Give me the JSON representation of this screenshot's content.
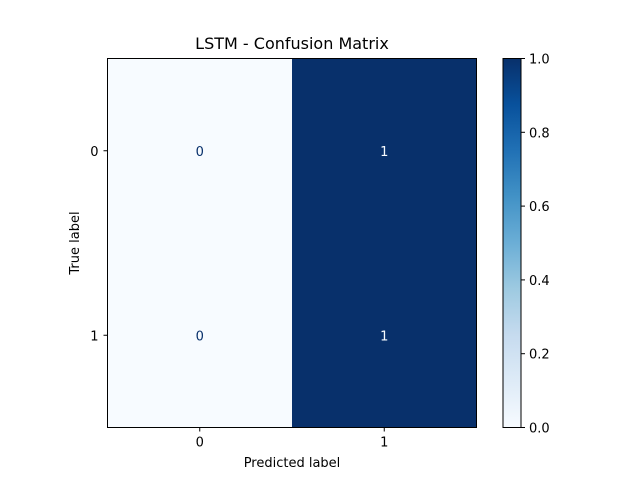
{
  "chart_data": {
    "type": "heatmap",
    "title": "LSTM - Confusion Matrix",
    "xlabel": "Predicted label",
    "ylabel": "True label",
    "x_categories": [
      "0",
      "1"
    ],
    "y_categories": [
      "0",
      "1"
    ],
    "values": [
      [
        0,
        1
      ],
      [
        0,
        1
      ]
    ],
    "colormap": "Blues",
    "color_low": "#f7fbff",
    "color_high": "#08306b",
    "colorbar": {
      "range": [
        0.0,
        1.0
      ],
      "ticks": [
        0.0,
        0.2,
        0.4,
        0.6,
        0.8,
        1.0
      ],
      "tick_labels": [
        "0.0",
        "0.2",
        "0.4",
        "0.6",
        "0.8",
        "1.0"
      ]
    }
  }
}
